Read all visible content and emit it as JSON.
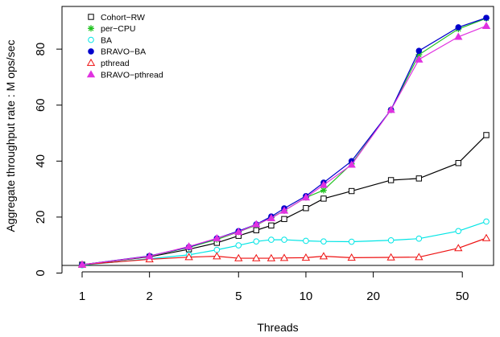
{
  "chart_data": {
    "type": "line",
    "xlabel": "Threads",
    "ylabel": "Aggregate throughput rate : M ops/sec",
    "x_scale": "log",
    "xlim": [
      1,
      64
    ],
    "ylim": [
      0,
      92
    ],
    "x_ticks": [
      1,
      2,
      5,
      10,
      20,
      50
    ],
    "x_tick_labels": [
      "1",
      "2",
      "5",
      "10",
      "20",
      "50"
    ],
    "y_ticks": [
      0,
      20,
      40,
      60,
      80
    ],
    "y_tick_labels": [
      "0",
      "20",
      "40",
      "60",
      "80"
    ],
    "grid": false,
    "legend_position": "top-left",
    "x": [
      1,
      2,
      3,
      4,
      5,
      6,
      7,
      8,
      10,
      12,
      16,
      24,
      32,
      48,
      64
    ],
    "series": [
      {
        "name": "Cohort−RW",
        "color": "#000000",
        "marker": "open-square",
        "values": [
          3.0,
          5.8,
          8.5,
          10.8,
          13.3,
          15.3,
          17.0,
          19.3,
          23.2,
          26.6,
          29.3,
          33.2,
          33.8,
          39.3,
          49.3
        ]
      },
      {
        "name": "per−CPU",
        "color": "#22c322",
        "marker": "star",
        "values": [
          3.0,
          6.0,
          9.2,
          12.0,
          14.7,
          17.1,
          19.8,
          22.3,
          27.0,
          29.6,
          39.0,
          58.3,
          78.0,
          87.2,
          91.0
        ]
      },
      {
        "name": "BA",
        "color": "#00e5e5",
        "marker": "open-circle",
        "values": [
          2.8,
          5.1,
          6.5,
          8.3,
          9.9,
          11.3,
          11.9,
          11.9,
          11.5,
          11.3,
          11.2,
          11.7,
          12.3,
          15.0,
          18.4
        ]
      },
      {
        "name": "BRAVO−BA",
        "color": "#0000cc",
        "marker": "filled-circle",
        "values": [
          3.0,
          6.1,
          9.3,
          12.4,
          15.0,
          17.4,
          20.2,
          23.1,
          27.5,
          32.3,
          40.0,
          58.3,
          79.4,
          87.8,
          91.2
        ]
      },
      {
        "name": "pthread",
        "color": "#ee1111",
        "marker": "open-triangle",
        "values": [
          3.0,
          4.9,
          5.7,
          6.0,
          5.3,
          5.3,
          5.3,
          5.4,
          5.5,
          6.0,
          5.5,
          5.6,
          5.7,
          8.9,
          12.5
        ]
      },
      {
        "name": "BRAVO−pthread",
        "color": "#e032e0",
        "marker": "filled-triangle",
        "values": [
          3.0,
          6.0,
          9.5,
          12.4,
          14.7,
          17.4,
          19.6,
          22.3,
          27.0,
          31.5,
          38.7,
          58.3,
          76.3,
          84.4,
          88.3
        ]
      }
    ]
  }
}
